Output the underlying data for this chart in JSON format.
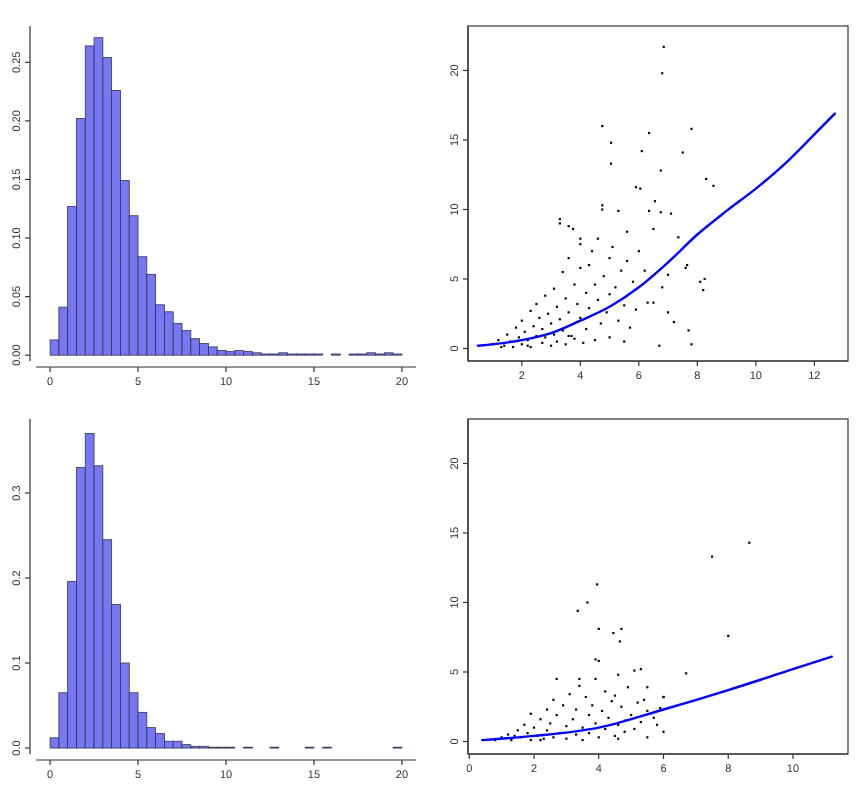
{
  "chart_data": [
    {
      "type": "histogram",
      "bins": [
        0,
        0.5,
        1,
        1.5,
        2,
        2.5,
        3,
        3.5,
        4,
        4.5,
        5,
        5.5,
        6,
        6.5,
        7,
        7.5,
        8,
        8.5,
        9,
        9.5,
        10,
        10.5,
        11,
        11.5,
        12,
        12.5,
        13,
        13.5,
        14,
        14.5,
        15,
        15.5,
        16,
        16.5,
        17,
        17.5,
        18,
        18.5,
        19,
        19.5,
        20
      ],
      "values": [
        0.013,
        0.041,
        0.127,
        0.202,
        0.264,
        0.271,
        0.254,
        0.226,
        0.149,
        0.119,
        0.084,
        0.069,
        0.043,
        0.037,
        0.027,
        0.021,
        0.014,
        0.01,
        0.007,
        0.004,
        0.003,
        0.004,
        0.003,
        0.002,
        0.001,
        0.001,
        0.002,
        0.001,
        0.001,
        0.001,
        0.001,
        0,
        0.001,
        0,
        0.001,
        0.001,
        0.002,
        0.001,
        0.002,
        0.001
      ],
      "color": "#7777f2",
      "xlim": [
        -0.8,
        20.8
      ],
      "ylim": [
        -0.005,
        0.281
      ],
      "xticks": [
        0,
        5,
        10,
        15,
        20
      ],
      "yticks": [
        {
          "value": 0,
          "label": "0.00"
        },
        {
          "value": 0.05,
          "label": "0.05"
        },
        {
          "value": 0.1,
          "label": "0.10"
        },
        {
          "value": 0.15,
          "label": "0.15"
        },
        {
          "value": 0.2,
          "label": "0.20"
        },
        {
          "value": 0.25,
          "label": "0.25"
        }
      ]
    },
    {
      "type": "scatter",
      "xlim": [
        0.16,
        13.15
      ],
      "ylim": [
        -0.9,
        23.2
      ],
      "xticks": [
        2,
        4,
        6,
        8,
        10,
        12
      ],
      "yticks": [
        0,
        5,
        10,
        15,
        20
      ],
      "series": [
        {
          "type": "scatter",
          "color": "#000000",
          "marker": "square",
          "x": [
            1.0,
            1.2,
            1.4,
            1.5,
            1.6,
            1.7,
            1.8,
            1.9,
            2.0,
            2.0,
            2.1,
            2.2,
            2.3,
            2.3,
            2.4,
            2.5,
            2.5,
            2.6,
            2.7,
            2.7,
            2.8,
            2.8,
            2.9,
            3.0,
            3.0,
            3.1,
            3.1,
            3.2,
            3.2,
            3.3,
            3.4,
            3.4,
            3.5,
            3.5,
            3.6,
            3.6,
            3.7,
            3.8,
            3.8,
            3.9,
            4.0,
            4.0,
            4.1,
            4.2,
            4.2,
            4.3,
            4.4,
            4.5,
            4.5,
            4.6,
            4.7,
            4.8,
            4.9,
            5.0,
            5.0,
            5.1,
            5.2,
            5.3,
            5.4,
            5.5,
            5.6,
            5.7,
            5.8,
            5.9,
            6.2,
            6.3,
            6.5,
            6.8,
            7.0,
            3.6,
            2.2,
            1.3,
            6.85,
            6.8,
            4.75,
            5.05,
            6.35,
            7.8,
            6.1,
            7.5,
            5.05,
            6.75,
            8.3,
            8.55,
            5.9,
            6.05,
            6.55,
            4.75,
            4.75,
            5.3,
            6.35,
            6.75,
            7.1,
            3.3,
            3.3,
            3.6,
            3.75,
            4.0,
            4.0,
            5.6,
            7.35,
            6.0,
            7.65,
            7.6,
            7.0,
            8.1,
            8.2,
            8.25,
            7.2,
            7.7,
            7.8,
            6.7,
            6.5,
            5.5,
            4.6,
            5.0,
            4.3
          ],
          "values": [
            0.3,
            0.6,
            0.2,
            1.0,
            0.5,
            0.1,
            1.5,
            0.8,
            0.3,
            2.0,
            1.2,
            0.6,
            2.7,
            0.1,
            1.6,
            0.9,
            3.2,
            2.2,
            0.4,
            1.4,
            3.8,
            0.8,
            2.5,
            0.2,
            1.8,
            4.3,
            1.0,
            3.0,
            0.5,
            2.1,
            5.5,
            1.3,
            3.6,
            0.3,
            2.6,
            6.5,
            0.9,
            4.6,
            0.7,
            3.2,
            2.2,
            5.8,
            0.4,
            4.0,
            1.4,
            2.9,
            7.0,
            4.6,
            0.6,
            3.5,
            1.8,
            5.2,
            2.6,
            3.9,
            0.8,
            7.3,
            4.4,
            2.0,
            5.6,
            3.1,
            6.3,
            1.5,
            4.8,
            2.8,
            5.6,
            3.3,
            8.6,
            4.4,
            2.6,
            0.9,
            0.2,
            0.1,
            21.7,
            19.8,
            16,
            14.8,
            15.5,
            15.8,
            14.2,
            14.1,
            13.3,
            12.8,
            12.2,
            11.7,
            11.6,
            11.5,
            10.6,
            10.3,
            10,
            9.9,
            9.9,
            9.8,
            9.7,
            9.3,
            9.0,
            8.8,
            8.6,
            7.9,
            7.5,
            8.4,
            8.0,
            7.0,
            6.0,
            5.8,
            5.3,
            4.8,
            4.2,
            5.0,
            1.9,
            1.3,
            0.3,
            0.2,
            3.3,
            0.5,
            7.9,
            6.5,
            6.0
          ]
        },
        {
          "type": "line",
          "color": "#0000ff",
          "x": [
            0.5,
            2,
            3,
            4,
            5,
            6,
            7,
            8,
            9,
            10,
            11,
            12,
            12.7
          ],
          "values": [
            0.2,
            0.6,
            1.1,
            2.0,
            3.0,
            4.4,
            6.2,
            8.2,
            9.9,
            11.5,
            13.3,
            15.4,
            16.9
          ]
        }
      ]
    },
    {
      "type": "histogram",
      "bins": [
        0,
        0.5,
        1,
        1.5,
        2,
        2.5,
        3,
        3.5,
        4,
        4.5,
        5,
        5.5,
        6,
        6.5,
        7,
        7.5,
        8,
        8.5,
        9,
        9.5,
        10,
        10.5,
        11,
        11.5,
        12,
        12.5,
        13,
        13.5,
        14,
        14.5,
        15,
        15.5,
        16,
        16.5,
        17,
        17.5,
        18,
        18.5,
        19,
        19.5,
        20
      ],
      "values": [
        0.012,
        0.065,
        0.196,
        0.33,
        0.37,
        0.332,
        0.245,
        0.169,
        0.1,
        0.065,
        0.042,
        0.024,
        0.017,
        0.008,
        0.008,
        0.004,
        0.002,
        0.002,
        0.001,
        0.001,
        0.001,
        0,
        0.001,
        0,
        0,
        0.001,
        0,
        0,
        0,
        0.001,
        0,
        0.001,
        0,
        0,
        0,
        0,
        0,
        0,
        0,
        0.001
      ],
      "color": "#7777f2",
      "xlim": [
        -0.8,
        20.8
      ],
      "ylim": [
        -0.007,
        0.387
      ],
      "xticks": [
        0,
        5,
        10,
        15,
        20
      ],
      "yticks": [
        {
          "value": 0,
          "label": "0.0"
        },
        {
          "value": 0.1,
          "label": "0.1"
        },
        {
          "value": 0.2,
          "label": "0.2"
        },
        {
          "value": 0.3,
          "label": "0.3"
        }
      ]
    },
    {
      "type": "scatter",
      "xlim": [
        -0.04,
        11.7
      ],
      "ylim": [
        -0.9,
        23.2
      ],
      "xticks": [
        0,
        2,
        4,
        6,
        8,
        10
      ],
      "yticks": [
        0,
        5,
        10,
        15,
        20
      ],
      "series": [
        {
          "type": "scatter",
          "color": "#000000",
          "marker": "square",
          "x": [
            0.8,
            1.0,
            1.2,
            1.3,
            1.5,
            1.6,
            1.7,
            1.8,
            1.9,
            1.9,
            2.0,
            2.1,
            2.2,
            2.3,
            2.4,
            2.4,
            2.5,
            2.6,
            2.6,
            2.7,
            2.8,
            2.9,
            3.0,
            3.0,
            3.1,
            3.2,
            3.3,
            3.3,
            3.4,
            3.5,
            3.5,
            3.6,
            3.7,
            3.7,
            3.8,
            3.9,
            3.9,
            4.0,
            4.1,
            4.2,
            4.2,
            4.3,
            4.4,
            4.5,
            4.5,
            4.6,
            4.7,
            4.8,
            4.9,
            5.0,
            5.1,
            5.2,
            5.3,
            5.5,
            5.7,
            5.9,
            6.0,
            2.2,
            1.4,
            8.65,
            7.5,
            3.95,
            3.65,
            3.35,
            4.0,
            4.7,
            4.45,
            4.65,
            8.0,
            3.9,
            4.0,
            6.7,
            5.1,
            5.3,
            4.6,
            2.7,
            3.4,
            5.5,
            5.4,
            6.0,
            5.8,
            6.0,
            5.5,
            4.8,
            4.6
          ],
          "values": [
            0.1,
            0.3,
            0.5,
            0.1,
            0.8,
            0.3,
            1.2,
            0.6,
            2.0,
            0.1,
            1.0,
            0.4,
            1.6,
            0.2,
            2.3,
            0.8,
            1.3,
            3.0,
            0.3,
            1.9,
            0.6,
            2.6,
            1.1,
            0.2,
            3.4,
            1.6,
            0.5,
            2.3,
            4.0,
            1.0,
            0.1,
            3.2,
            1.9,
            0.6,
            2.6,
            4.5,
            1.3,
            0.3,
            2.2,
            3.6,
            0.9,
            1.7,
            2.9,
            0.4,
            3.3,
            1.2,
            2.5,
            0.7,
            3.9,
            1.9,
            0.9,
            2.8,
            1.4,
            2.2,
            1.7,
            2.4,
            3.2,
            0.1,
            0.4,
            14.3,
            13.3,
            11.3,
            10,
            9.4,
            8.1,
            8.1,
            7.8,
            7.2,
            7.6,
            5.9,
            5.8,
            4.9,
            5.1,
            5.2,
            4.8,
            4.5,
            4.5,
            3.9,
            3.0,
            3.2,
            1.2,
            0.7,
            0.3,
            1.5,
            0.2
          ]
        },
        {
          "type": "line",
          "color": "#0000ff",
          "x": [
            0.4,
            2,
            4,
            6,
            8,
            10,
            11.2
          ],
          "values": [
            0.1,
            0.4,
            1.0,
            2.3,
            3.7,
            5.2,
            6.1
          ]
        }
      ]
    }
  ]
}
